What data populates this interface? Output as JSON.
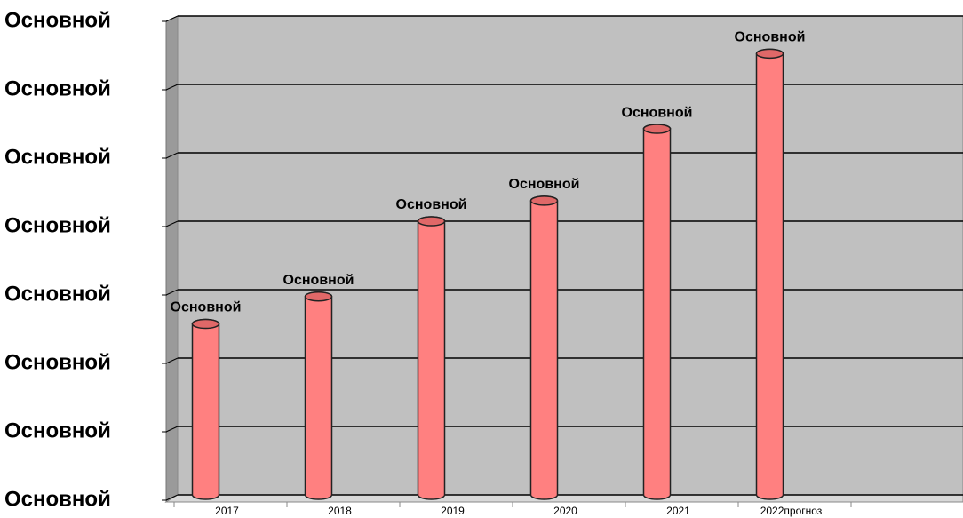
{
  "chart_data": {
    "type": "bar",
    "categories": [
      "2017",
      "2018",
      "2019",
      "2020",
      "2021",
      "2022прогноз"
    ],
    "values": [
      2.5,
      2.9,
      4.0,
      4.3,
      5.35,
      6.45
    ],
    "value_labels": [
      "Основной",
      "Основной",
      "Основной",
      "Основной",
      "Основной",
      "Основной"
    ],
    "color": "#ff8080",
    "ylim": [
      0,
      7
    ],
    "yticks": [
      {
        "value": 0,
        "label": "Основной"
      },
      {
        "value": 1,
        "label": "Основной"
      },
      {
        "value": 2,
        "label": "Основной"
      },
      {
        "value": 3,
        "label": "Основной"
      },
      {
        "value": 4,
        "label": "Основной"
      },
      {
        "value": 5,
        "label": "Основной"
      },
      {
        "value": 6,
        "label": "Основной"
      },
      {
        "value": 7,
        "label": "Основной"
      }
    ],
    "grid": true
  }
}
